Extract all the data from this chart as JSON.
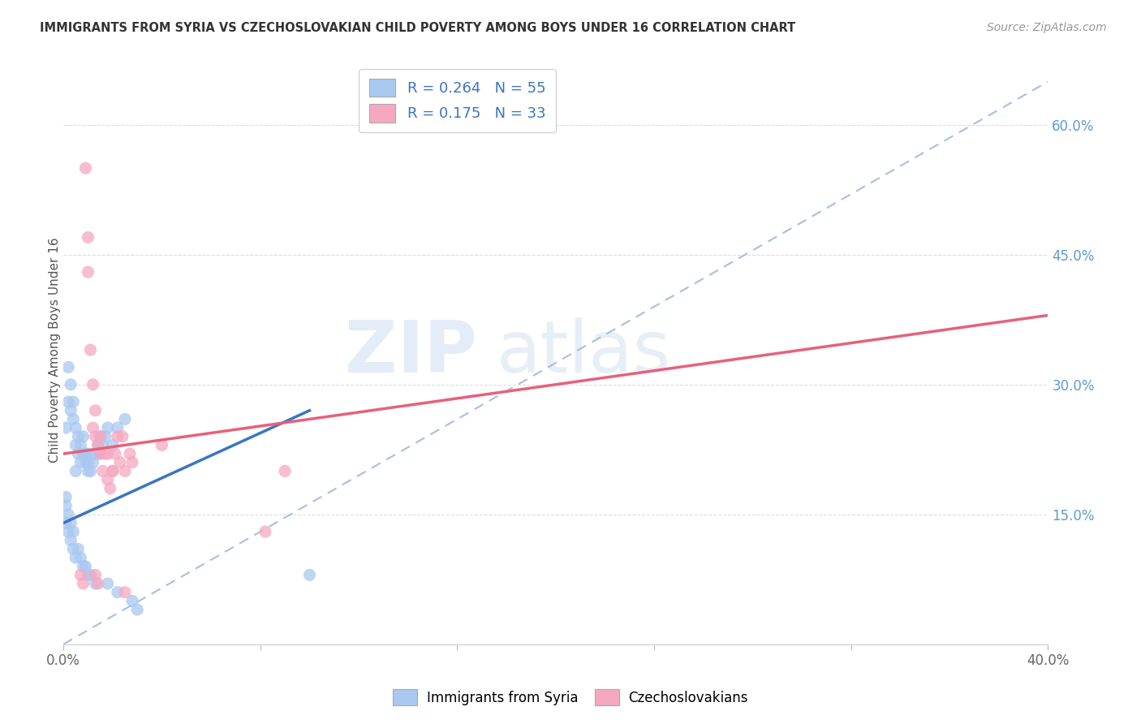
{
  "title": "IMMIGRANTS FROM SYRIA VS CZECHOSLOVAKIAN CHILD POVERTY AMONG BOYS UNDER 16 CORRELATION CHART",
  "source": "Source: ZipAtlas.com",
  "ylabel": "Child Poverty Among Boys Under 16",
  "right_yticklabels": [
    "",
    "15.0%",
    "30.0%",
    "45.0%",
    "60.0%"
  ],
  "right_ytick_vals": [
    0.0,
    0.15,
    0.3,
    0.45,
    0.6
  ],
  "legend_label1": "R = 0.264   N = 55",
  "legend_label2": "R = 0.175   N = 33",
  "blue_color": "#a8c8f0",
  "pink_color": "#f5a8c0",
  "blue_line_color": "#3a75c4",
  "pink_line_color": "#e8607a",
  "dashed_line_color": "#a0b8d8",
  "xlim": [
    0.0,
    0.4
  ],
  "ylim": [
    0.0,
    0.68
  ],
  "figsize": [
    14.06,
    8.92
  ],
  "dpi": 100,
  "blue_scatter_x": [
    0.001,
    0.002,
    0.002,
    0.003,
    0.003,
    0.004,
    0.004,
    0.005,
    0.005,
    0.005,
    0.006,
    0.006,
    0.007,
    0.007,
    0.008,
    0.008,
    0.009,
    0.009,
    0.01,
    0.01,
    0.01,
    0.011,
    0.012,
    0.013,
    0.014,
    0.015,
    0.015,
    0.016,
    0.017,
    0.018,
    0.02,
    0.022,
    0.025,
    0.001,
    0.001,
    0.001,
    0.002,
    0.002,
    0.003,
    0.003,
    0.004,
    0.004,
    0.005,
    0.006,
    0.007,
    0.008,
    0.009,
    0.01,
    0.011,
    0.013,
    0.018,
    0.022,
    0.028,
    0.03,
    0.1
  ],
  "blue_scatter_y": [
    0.25,
    0.32,
    0.28,
    0.27,
    0.3,
    0.26,
    0.28,
    0.25,
    0.23,
    0.2,
    0.24,
    0.22,
    0.23,
    0.21,
    0.22,
    0.24,
    0.21,
    0.22,
    0.2,
    0.21,
    0.22,
    0.2,
    0.21,
    0.22,
    0.23,
    0.24,
    0.22,
    0.23,
    0.24,
    0.25,
    0.23,
    0.25,
    0.26,
    0.17,
    0.16,
    0.14,
    0.15,
    0.13,
    0.14,
    0.12,
    0.13,
    0.11,
    0.1,
    0.11,
    0.1,
    0.09,
    0.09,
    0.08,
    0.08,
    0.07,
    0.07,
    0.06,
    0.05,
    0.04,
    0.08
  ],
  "pink_scatter_x": [
    0.009,
    0.01,
    0.01,
    0.011,
    0.012,
    0.013,
    0.013,
    0.014,
    0.015,
    0.016,
    0.017,
    0.018,
    0.019,
    0.02,
    0.021,
    0.022,
    0.023,
    0.025,
    0.027,
    0.028,
    0.012,
    0.015,
    0.018,
    0.02,
    0.024,
    0.04,
    0.082,
    0.09,
    0.007,
    0.008,
    0.013,
    0.014,
    0.025
  ],
  "pink_scatter_y": [
    0.55,
    0.47,
    0.43,
    0.34,
    0.3,
    0.27,
    0.24,
    0.23,
    0.22,
    0.2,
    0.22,
    0.19,
    0.18,
    0.2,
    0.22,
    0.24,
    0.21,
    0.2,
    0.22,
    0.21,
    0.25,
    0.24,
    0.22,
    0.2,
    0.24,
    0.23,
    0.13,
    0.2,
    0.08,
    0.07,
    0.08,
    0.07,
    0.06
  ],
  "blue_line_x": [
    0.0,
    0.1
  ],
  "blue_line_y_start": 0.14,
  "blue_line_y_end": 0.27,
  "pink_line_x": [
    0.0,
    0.4
  ],
  "pink_line_y_start": 0.22,
  "pink_line_y_end": 0.38,
  "dash_line_x": [
    0.0,
    0.4
  ],
  "dash_line_y": [
    0.0,
    0.65
  ]
}
